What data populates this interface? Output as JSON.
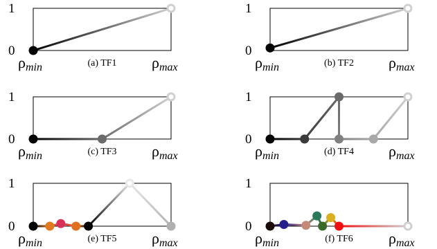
{
  "figure": {
    "panels": [
      {
        "caption": "(a) TF1",
        "y_top_label": "1",
        "y_bottom_label": "0",
        "x_left_label": {
          "symbol": "ρ",
          "sub": "min"
        },
        "x_right_label": {
          "symbol": "ρ",
          "sub": "max"
        },
        "points": [
          {
            "t": 0.0,
            "v": 0.0,
            "color": "#000000",
            "hollow": false
          },
          {
            "t": 1.0,
            "v": 1.0,
            "color": "#d0d0d0",
            "hollow": true
          }
        ]
      },
      {
        "caption": "(b) TF2",
        "y_top_label": "1",
        "y_bottom_label": "0",
        "x_left_label": {
          "symbol": "ρ",
          "sub": "min"
        },
        "x_right_label": {
          "symbol": "ρ",
          "sub": "max"
        },
        "points": [
          {
            "t": 0.0,
            "v": 0.06,
            "color": "#000000",
            "hollow": false
          },
          {
            "t": 1.0,
            "v": 1.0,
            "color": "#d0d0d0",
            "hollow": true
          }
        ]
      },
      {
        "caption": "(c) TF3",
        "y_top_label": "1",
        "y_bottom_label": "0",
        "x_left_label": {
          "symbol": "ρ",
          "sub": "min"
        },
        "x_right_label": {
          "symbol": "ρ",
          "sub": "max"
        },
        "points": [
          {
            "t": 0.0,
            "v": 0.0,
            "color": "#000000",
            "hollow": false
          },
          {
            "t": 0.5,
            "v": 0.0,
            "color": "#6a6a6a",
            "hollow": false
          },
          {
            "t": 1.0,
            "v": 1.0,
            "color": "#d0d0d0",
            "hollow": true
          }
        ]
      },
      {
        "caption": "(d) TF4",
        "y_top_label": "1",
        "y_bottom_label": "0",
        "x_left_label": {
          "symbol": "ρ",
          "sub": "min"
        },
        "x_right_label": {
          "symbol": "ρ",
          "sub": "max"
        },
        "points": [
          {
            "t": 0.0,
            "v": 0.0,
            "color": "#000000",
            "hollow": false
          },
          {
            "t": 0.25,
            "v": 0.0,
            "color": "#3a3a3a",
            "hollow": false
          },
          {
            "t": 0.5,
            "v": 1.0,
            "color": "#6a6a6a",
            "hollow": false
          },
          {
            "t": 0.5,
            "v": 0.0,
            "color": "#808080",
            "hollow": false
          },
          {
            "t": 0.75,
            "v": 0.0,
            "color": "#a8a8a8",
            "hollow": false
          },
          {
            "t": 1.0,
            "v": 1.0,
            "color": "#d0d0d0",
            "hollow": true
          }
        ]
      },
      {
        "caption": "(e) TF5",
        "y_top_label": "1",
        "y_bottom_label": "0",
        "x_left_label": {
          "symbol": "ρ",
          "sub": "min"
        },
        "x_right_label": {
          "symbol": "ρ",
          "sub": "max"
        },
        "points": [
          {
            "t": 0.0,
            "v": 0.0,
            "color": "#000000",
            "hollow": false
          },
          {
            "t": 0.12,
            "v": 0.0,
            "color": "#e07a20",
            "hollow": false
          },
          {
            "t": 0.2,
            "v": 0.06,
            "color": "#d8325a",
            "hollow": false
          },
          {
            "t": 0.31,
            "v": 0.0,
            "color": "#e0701e",
            "hollow": false
          },
          {
            "t": 0.4,
            "v": 0.0,
            "color": "#000000",
            "hollow": false
          },
          {
            "t": 0.7,
            "v": 1.0,
            "color": "#e8e8e8",
            "hollow": true
          },
          {
            "t": 1.0,
            "v": 0.0,
            "color": "#b0b0b0",
            "hollow": false
          }
        ]
      },
      {
        "caption": "(f) TF6",
        "y_top_label": "1",
        "y_bottom_label": "0",
        "x_left_label": {
          "symbol": "ρ",
          "sub": "min"
        },
        "x_right_label": {
          "symbol": "ρ",
          "sub": "max"
        },
        "points": [
          {
            "t": 0.0,
            "v": 0.0,
            "color": "#1a0a05",
            "hollow": false
          },
          {
            "t": 0.1,
            "v": 0.04,
            "color": "#26208a",
            "hollow": false
          },
          {
            "t": 0.26,
            "v": 0.02,
            "color": "#c48a78",
            "hollow": false
          },
          {
            "t": 0.34,
            "v": 0.24,
            "color": "#2a7a5a",
            "hollow": false
          },
          {
            "t": 0.38,
            "v": 0.0,
            "color": "#3a6a2a",
            "hollow": false
          },
          {
            "t": 0.44,
            "v": 0.2,
            "color": "#d8b020",
            "hollow": false
          },
          {
            "t": 0.5,
            "v": 0.0,
            "color": "#ee1010",
            "hollow": false
          },
          {
            "t": 1.0,
            "v": 0.0,
            "color": "#d0d0d0",
            "hollow": true
          }
        ]
      }
    ]
  }
}
